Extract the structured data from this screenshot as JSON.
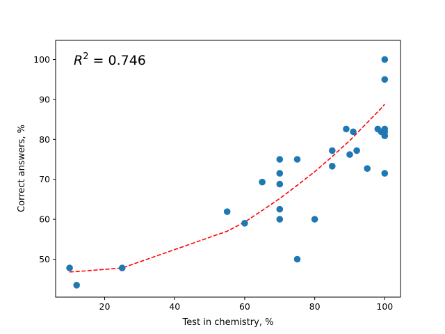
{
  "chart_data": {
    "type": "scatter",
    "xlabel": "Test in chemistry, %",
    "ylabel": "Correct answers, %",
    "xlim": [
      6.0,
      104.5
    ],
    "ylim": [
      40.5,
      104.8
    ],
    "x_ticks": [
      20,
      40,
      60,
      80,
      100
    ],
    "y_ticks": [
      50,
      60,
      70,
      80,
      90,
      100
    ],
    "grid": false,
    "annotation": {
      "symbol": "R",
      "exponent": "2",
      "equals": " = ",
      "value": "0.746"
    },
    "marker_color": "#1f77b4",
    "trend_color": "#ff0000",
    "points": [
      {
        "x": 10,
        "y": 47.8
      },
      {
        "x": 12,
        "y": 43.5
      },
      {
        "x": 25,
        "y": 47.8
      },
      {
        "x": 55,
        "y": 61.9
      },
      {
        "x": 60,
        "y": 59.0
      },
      {
        "x": 65,
        "y": 69.3
      },
      {
        "x": 70,
        "y": 75.0
      },
      {
        "x": 70,
        "y": 71.5
      },
      {
        "x": 70,
        "y": 68.8
      },
      {
        "x": 70,
        "y": 62.5
      },
      {
        "x": 70,
        "y": 60.0
      },
      {
        "x": 75,
        "y": 75.0
      },
      {
        "x": 75,
        "y": 50.0
      },
      {
        "x": 80,
        "y": 60.0
      },
      {
        "x": 85,
        "y": 77.2
      },
      {
        "x": 85,
        "y": 73.3
      },
      {
        "x": 89,
        "y": 82.6
      },
      {
        "x": 90,
        "y": 76.2
      },
      {
        "x": 91,
        "y": 81.9
      },
      {
        "x": 92,
        "y": 77.2
      },
      {
        "x": 95,
        "y": 72.7
      },
      {
        "x": 98,
        "y": 82.6
      },
      {
        "x": 99,
        "y": 81.9
      },
      {
        "x": 100,
        "y": 100.0
      },
      {
        "x": 100,
        "y": 95.0
      },
      {
        "x": 100,
        "y": 82.6
      },
      {
        "x": 100,
        "y": 81.9
      },
      {
        "x": 100,
        "y": 80.9
      },
      {
        "x": 100,
        "y": 71.5
      }
    ],
    "trend_line": {
      "style": "dashed",
      "x": [
        10,
        12,
        25,
        55,
        60,
        65,
        70,
        75,
        80,
        85,
        89,
        90,
        91,
        92,
        95,
        98,
        99,
        100
      ],
      "y": [
        46.8,
        46.9,
        47.8,
        57.0,
        59.3,
        62.2,
        65.2,
        68.5,
        71.9,
        75.7,
        78.9,
        79.7,
        80.6,
        81.5,
        84.2,
        86.9,
        87.8,
        88.8
      ]
    }
  }
}
